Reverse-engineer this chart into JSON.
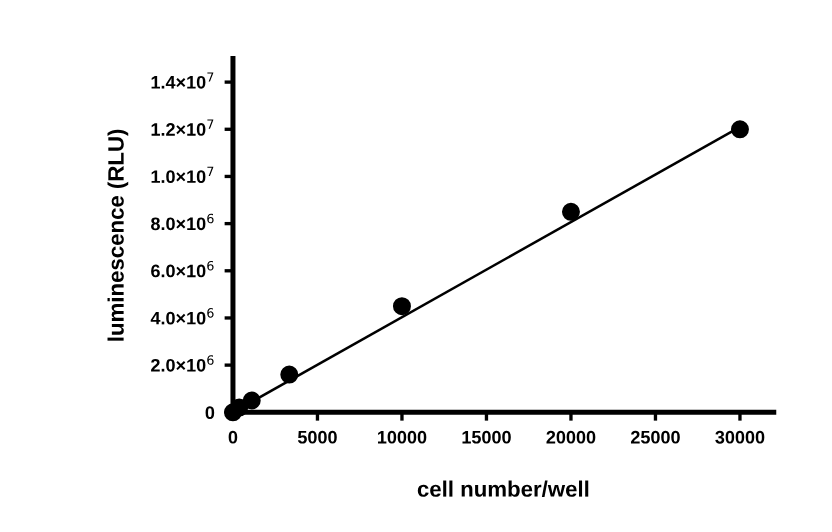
{
  "chart_data": {
    "type": "scatter",
    "xlabel": "cell number/well",
    "ylabel": "luminescence (RLU)",
    "xlim": [
      0,
      32000
    ],
    "ylim": [
      0,
      15000000
    ],
    "xticks": [
      0,
      5000,
      10000,
      15000,
      20000,
      25000,
      30000
    ],
    "yticks": [
      0,
      {
        "value": 2000000,
        "label": "2.0×10$^{6}$"
      },
      {
        "value": 4000000,
        "label": "4.0×10$^{6}$"
      },
      {
        "value": 6000000,
        "label": "6.0×10$^{6}$"
      },
      {
        "value": 8000000,
        "label": "8.0×10$^{6}$"
      },
      {
        "value": 10000000,
        "label": "1.0×10$^{7}$"
      },
      {
        "value": 12000000,
        "label": "1.2×10$^{7}$"
      },
      {
        "value": 14000000,
        "label": "1.4×10$^{7}$"
      }
    ],
    "grid": false,
    "legend": false,
    "marker": "circle",
    "series": [
      {
        "color": "#000000",
        "x": [
          0,
          370,
          1111,
          3333,
          10000,
          20000,
          30000
        ],
        "values": [
          0,
          200000,
          500000,
          1600000,
          4500000,
          8500000,
          12000000
        ]
      },
      {
        "type": "line",
        "color": "#000000",
        "marker": "none",
        "line_style": "solid",
        "x": [
          0,
          30000
        ],
        "values": [
          0,
          12100000
        ]
      }
    ]
  }
}
